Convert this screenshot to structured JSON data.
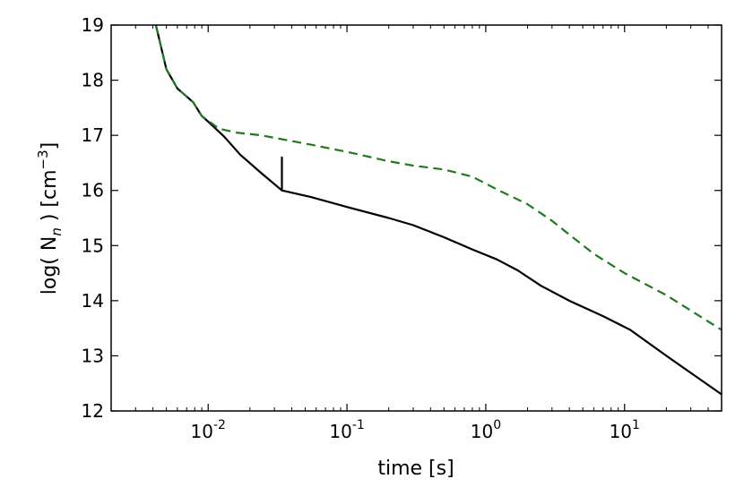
{
  "chart_data": {
    "type": "line",
    "title": "",
    "xlabel": "time  [s]",
    "ylabel_parts": {
      "prefix": "log( N",
      "subscript": "n",
      "middle": " )  [cm",
      "superscript": "−3",
      "suffix": "]"
    },
    "xscale": "log",
    "xlim": [
      0.002,
      50
    ],
    "ylim": [
      12,
      19
    ],
    "x_ticks": [
      {
        "value": 0.01,
        "base": "10",
        "exp": "-2"
      },
      {
        "value": 0.1,
        "base": "10",
        "exp": "-1"
      },
      {
        "value": 1,
        "base": "10",
        "exp": "0"
      },
      {
        "value": 10,
        "base": "10",
        "exp": "1"
      }
    ],
    "y_ticks": [
      12,
      13,
      14,
      15,
      16,
      17,
      18,
      19
    ],
    "grid": false,
    "legend": "none",
    "series": [
      {
        "style": "solid",
        "color": "#000000",
        "x": [
          0.0042,
          0.005,
          0.006,
          0.0078,
          0.009,
          0.01,
          0.013,
          0.017,
          0.024,
          0.034,
          0.034,
          0.034,
          0.055,
          0.1,
          0.2,
          0.3,
          0.5,
          0.8,
          1.2,
          1.7,
          2.5,
          4.0,
          7.0,
          11.0,
          20.0,
          50.0
        ],
        "y": [
          19.0,
          18.2,
          17.85,
          17.6,
          17.35,
          17.25,
          16.98,
          16.65,
          16.32,
          16.0,
          16.6,
          16.0,
          15.88,
          15.7,
          15.5,
          15.37,
          15.15,
          14.93,
          14.75,
          14.55,
          14.27,
          14.0,
          13.72,
          13.47,
          13.0,
          12.3
        ]
      },
      {
        "style": "dashed",
        "color": "#1f7a1f",
        "x": [
          0.0042,
          0.005,
          0.006,
          0.0078,
          0.009,
          0.012,
          0.016,
          0.024,
          0.034,
          0.055,
          0.1,
          0.2,
          0.3,
          0.5,
          0.8,
          1.2,
          2.0,
          3.0,
          4.0,
          6.0,
          10.0,
          20.0,
          50.0
        ],
        "y": [
          19.0,
          18.2,
          17.85,
          17.6,
          17.35,
          17.12,
          17.05,
          17.0,
          16.93,
          16.83,
          16.7,
          16.53,
          16.45,
          16.38,
          16.25,
          16.02,
          15.75,
          15.45,
          15.2,
          14.85,
          14.5,
          14.1,
          13.47
        ]
      }
    ]
  }
}
